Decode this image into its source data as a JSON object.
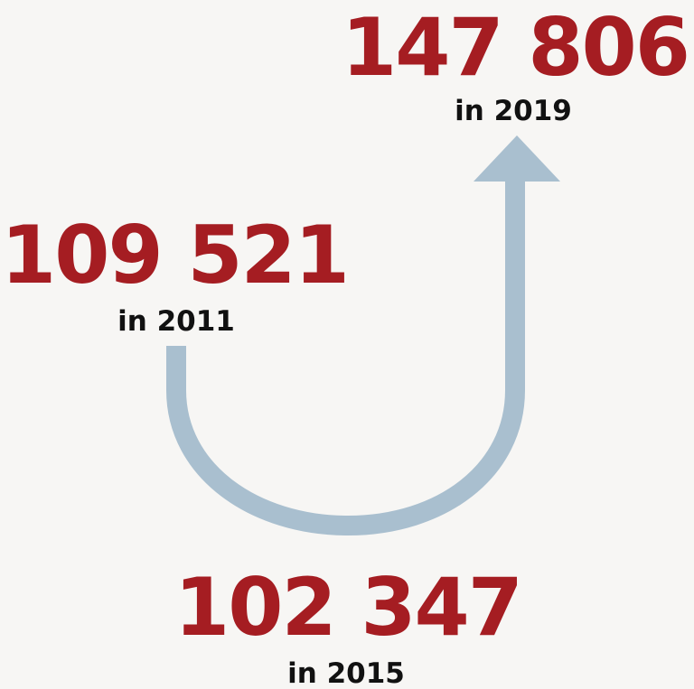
{
  "items": [
    {
      "value": "147 806",
      "caption": "in 2019"
    },
    {
      "value": "109 521",
      "caption": "in 2011"
    },
    {
      "value": "102 347",
      "caption": "in 2015"
    }
  ]
}
